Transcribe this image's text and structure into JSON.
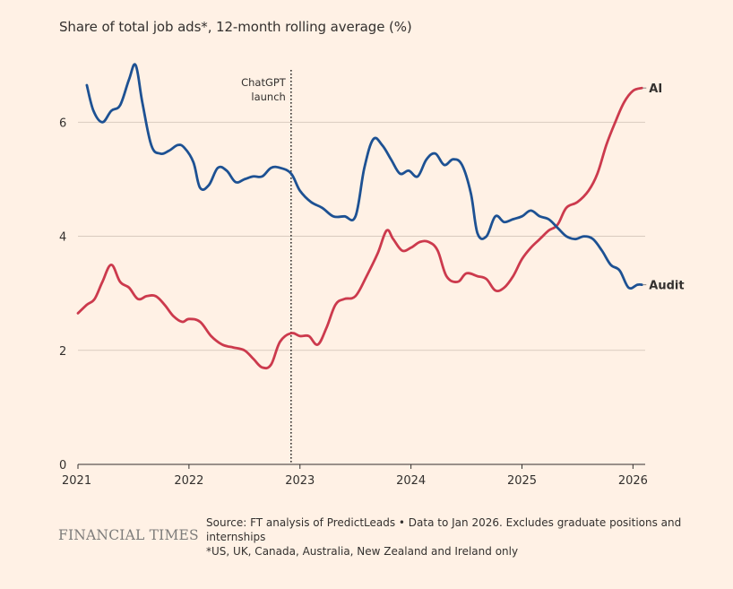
{
  "header": {
    "subtitle": "Share of total job ads*, 12-month rolling average (%)"
  },
  "footer": {
    "brand": "FINANCIAL TIMES",
    "source": "Source: FT analysis of PredictLeads • Data to Jan 2026. Excludes graduate positions and internships",
    "footnote": "*US, UK, Canada, Australia, New Zealand and Ireland only"
  },
  "colors": {
    "background": "#fff1e5",
    "ai": "#cc3a4d",
    "audit": "#1d5193",
    "grid": "#d9cbbf",
    "axis": "#33302e"
  },
  "chart_data": {
    "type": "line",
    "title": "",
    "xlabel": "",
    "ylabel": "",
    "xlim": [
      2021.0,
      2026.11
    ],
    "ylim": [
      0,
      7.2
    ],
    "yticks": [
      0,
      2,
      4,
      6
    ],
    "ytick_labels": [
      "0",
      "2",
      "4",
      "6"
    ],
    "xticks": [
      2021,
      2022,
      2023,
      2024,
      2025,
      2026
    ],
    "xtick_labels": [
      "2021",
      "2022",
      "2023",
      "2024",
      "2025",
      "2026"
    ],
    "grid": true,
    "legend": "direct labels at line ends",
    "annotation": {
      "x": 2022.92,
      "lines": [
        "ChatGPT",
        "launch"
      ]
    },
    "series": [
      {
        "name": "AI",
        "color": "#cc3a4d",
        "points": [
          [
            2021.0,
            2.65
          ],
          [
            2021.08,
            2.8
          ],
          [
            2021.15,
            2.9
          ],
          [
            2021.22,
            3.2
          ],
          [
            2021.3,
            3.5
          ],
          [
            2021.38,
            3.2
          ],
          [
            2021.46,
            3.1
          ],
          [
            2021.54,
            2.9
          ],
          [
            2021.62,
            2.95
          ],
          [
            2021.7,
            2.95
          ],
          [
            2021.78,
            2.8
          ],
          [
            2021.86,
            2.6
          ],
          [
            2021.94,
            2.5
          ],
          [
            2022.0,
            2.55
          ],
          [
            2022.1,
            2.5
          ],
          [
            2022.2,
            2.25
          ],
          [
            2022.3,
            2.1
          ],
          [
            2022.4,
            2.05
          ],
          [
            2022.5,
            2.0
          ],
          [
            2022.58,
            1.85
          ],
          [
            2022.66,
            1.7
          ],
          [
            2022.74,
            1.75
          ],
          [
            2022.82,
            2.15
          ],
          [
            2022.92,
            2.3
          ],
          [
            2023.0,
            2.25
          ],
          [
            2023.08,
            2.25
          ],
          [
            2023.16,
            2.1
          ],
          [
            2023.24,
            2.4
          ],
          [
            2023.32,
            2.8
          ],
          [
            2023.4,
            2.9
          ],
          [
            2023.5,
            2.95
          ],
          [
            2023.6,
            3.3
          ],
          [
            2023.7,
            3.7
          ],
          [
            2023.78,
            4.1
          ],
          [
            2023.84,
            3.95
          ],
          [
            2023.92,
            3.75
          ],
          [
            2024.0,
            3.8
          ],
          [
            2024.08,
            3.9
          ],
          [
            2024.16,
            3.9
          ],
          [
            2024.24,
            3.75
          ],
          [
            2024.32,
            3.3
          ],
          [
            2024.42,
            3.2
          ],
          [
            2024.5,
            3.35
          ],
          [
            2024.6,
            3.3
          ],
          [
            2024.68,
            3.25
          ],
          [
            2024.76,
            3.05
          ],
          [
            2024.84,
            3.1
          ],
          [
            2024.92,
            3.3
          ],
          [
            2025.0,
            3.6
          ],
          [
            2025.08,
            3.8
          ],
          [
            2025.16,
            3.95
          ],
          [
            2025.24,
            4.1
          ],
          [
            2025.32,
            4.2
          ],
          [
            2025.4,
            4.5
          ],
          [
            2025.5,
            4.6
          ],
          [
            2025.6,
            4.8
          ],
          [
            2025.68,
            5.1
          ],
          [
            2025.76,
            5.6
          ],
          [
            2025.84,
            6.0
          ],
          [
            2025.92,
            6.35
          ],
          [
            2026.0,
            6.55
          ],
          [
            2026.08,
            6.6
          ]
        ]
      },
      {
        "name": "Audit",
        "color": "#1d5193",
        "points": [
          [
            2021.08,
            6.65
          ],
          [
            2021.14,
            6.2
          ],
          [
            2021.22,
            6.0
          ],
          [
            2021.3,
            6.2
          ],
          [
            2021.38,
            6.3
          ],
          [
            2021.46,
            6.75
          ],
          [
            2021.52,
            7.0
          ],
          [
            2021.58,
            6.35
          ],
          [
            2021.66,
            5.6
          ],
          [
            2021.74,
            5.45
          ],
          [
            2021.82,
            5.5
          ],
          [
            2021.9,
            5.6
          ],
          [
            2021.96,
            5.55
          ],
          [
            2022.04,
            5.3
          ],
          [
            2022.1,
            4.85
          ],
          [
            2022.18,
            4.9
          ],
          [
            2022.26,
            5.2
          ],
          [
            2022.34,
            5.15
          ],
          [
            2022.42,
            4.95
          ],
          [
            2022.5,
            5.0
          ],
          [
            2022.58,
            5.05
          ],
          [
            2022.66,
            5.05
          ],
          [
            2022.74,
            5.2
          ],
          [
            2022.82,
            5.2
          ],
          [
            2022.92,
            5.1
          ],
          [
            2023.0,
            4.8
          ],
          [
            2023.1,
            4.6
          ],
          [
            2023.2,
            4.5
          ],
          [
            2023.3,
            4.35
          ],
          [
            2023.4,
            4.35
          ],
          [
            2023.5,
            4.35
          ],
          [
            2023.58,
            5.2
          ],
          [
            2023.66,
            5.7
          ],
          [
            2023.74,
            5.6
          ],
          [
            2023.82,
            5.35
          ],
          [
            2023.9,
            5.1
          ],
          [
            2023.98,
            5.15
          ],
          [
            2024.06,
            5.05
          ],
          [
            2024.14,
            5.35
          ],
          [
            2024.22,
            5.45
          ],
          [
            2024.3,
            5.25
          ],
          [
            2024.38,
            5.35
          ],
          [
            2024.46,
            5.25
          ],
          [
            2024.54,
            4.75
          ],
          [
            2024.6,
            4.05
          ],
          [
            2024.68,
            4.0
          ],
          [
            2024.76,
            4.35
          ],
          [
            2024.84,
            4.25
          ],
          [
            2024.92,
            4.3
          ],
          [
            2025.0,
            4.35
          ],
          [
            2025.08,
            4.45
          ],
          [
            2025.16,
            4.35
          ],
          [
            2025.24,
            4.3
          ],
          [
            2025.32,
            4.15
          ],
          [
            2025.4,
            4.0
          ],
          [
            2025.48,
            3.95
          ],
          [
            2025.56,
            4.0
          ],
          [
            2025.64,
            3.95
          ],
          [
            2025.72,
            3.75
          ],
          [
            2025.8,
            3.5
          ],
          [
            2025.88,
            3.4
          ],
          [
            2025.96,
            3.1
          ],
          [
            2026.04,
            3.15
          ],
          [
            2026.08,
            3.15
          ]
        ]
      }
    ]
  }
}
